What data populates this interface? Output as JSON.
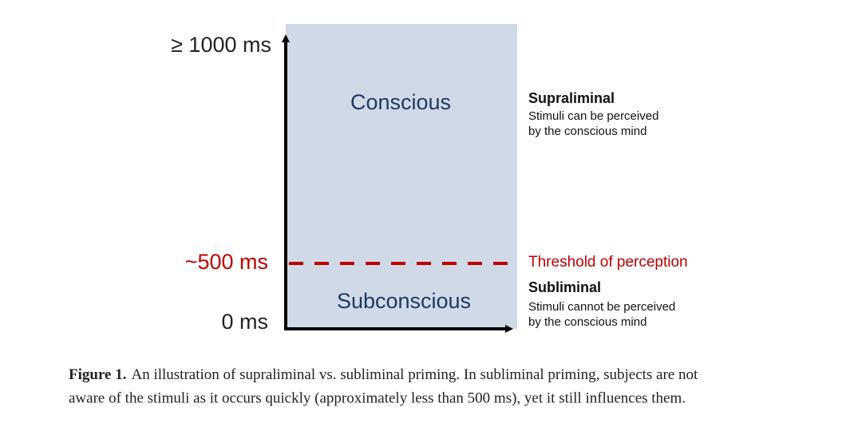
{
  "axis": {
    "top_label": "≥ 1000 ms",
    "threshold_label": "~500 ms",
    "bottom_label": "0 ms"
  },
  "regions": {
    "upper": "Conscious",
    "lower": "Subconscious"
  },
  "notes": {
    "supraliminal_title": "Supraliminal",
    "supraliminal_lines": [
      "Stimuli can be perceived",
      "by the conscious mind"
    ],
    "threshold": "Threshold of perception",
    "subliminal_title": "Subliminal",
    "subliminal_lines": [
      "Stimuli cannot be perceived",
      "by the conscious mind"
    ]
  },
  "caption": {
    "label": "Figure 1.",
    "lines": [
      "An illustration of supraliminal vs. subliminal priming. In subliminal priming, subjects are not",
      "aware of the stimuli as it occurs quickly (approximately less than 500 ms), yet it still influences them."
    ]
  }
}
